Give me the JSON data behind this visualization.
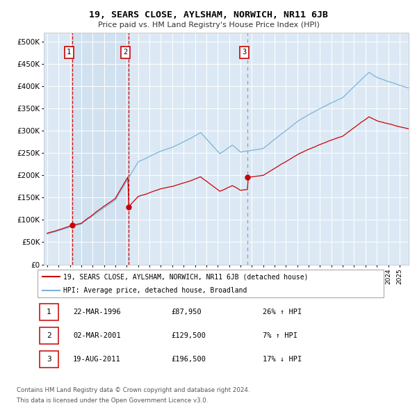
{
  "title": "19, SEARS CLOSE, AYLSHAM, NORWICH, NR11 6JB",
  "subtitle": "Price paid vs. HM Land Registry's House Price Index (HPI)",
  "background_color": "#ffffff",
  "plot_background": "#dce9f5",
  "hpi_color": "#7ab3d9",
  "price_color": "#cc0000",
  "sales": [
    {
      "index": 1,
      "date_label": "22-MAR-1996",
      "x_year": 1996.22,
      "price": 87950,
      "pct": "26%",
      "dir": "↑"
    },
    {
      "index": 2,
      "date_label": "02-MAR-2001",
      "x_year": 2001.17,
      "price": 129500,
      "pct": "7%",
      "dir": "↑"
    },
    {
      "index": 3,
      "date_label": "19-AUG-2011",
      "x_year": 2011.63,
      "price": 196500,
      "pct": "17%",
      "dir": "↓"
    }
  ],
  "yticks": [
    0,
    50000,
    100000,
    150000,
    200000,
    250000,
    300000,
    350000,
    400000,
    450000,
    500000
  ],
  "ytick_labels": [
    "£0",
    "£50K",
    "£100K",
    "£150K",
    "£200K",
    "£250K",
    "£300K",
    "£350K",
    "£400K",
    "£450K",
    "£500K"
  ],
  "xmin": 1993.7,
  "xmax": 2025.8,
  "ymin": 0,
  "ymax": 520000,
  "legend_line1": "19, SEARS CLOSE, AYLSHAM, NORWICH, NR11 6JB (detached house)",
  "legend_line2": "HPI: Average price, detached house, Broadland",
  "footer1": "Contains HM Land Registry data © Crown copyright and database right 2024.",
  "footer2": "This data is licensed under the Open Government Licence v3.0.",
  "table": [
    [
      "1",
      "22-MAR-1996",
      "£87,950",
      "26% ↑ HPI"
    ],
    [
      "2",
      "02-MAR-2001",
      "£129,500",
      "7% ↑ HPI"
    ],
    [
      "3",
      "19-AUG-2011",
      "£196,500",
      "17% ↓ HPI"
    ]
  ]
}
